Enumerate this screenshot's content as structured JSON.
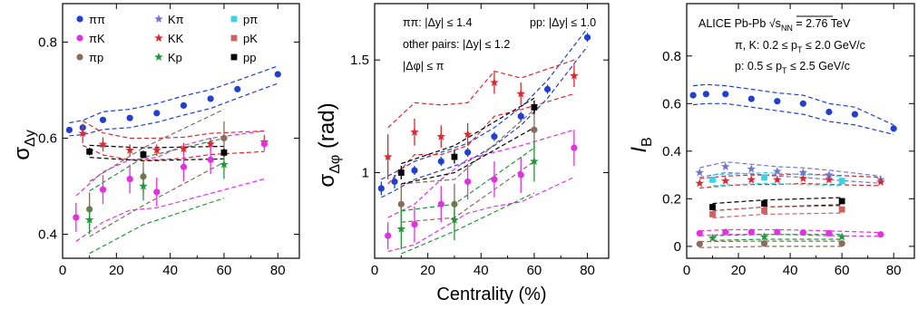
{
  "xlabel": "Centrality (%)",
  "chart_data": [
    {
      "type": "scatter",
      "panel": "sigma-dy",
      "ylabel": "σ",
      "ylabel_sub": "Δy",
      "xlim": [
        0,
        88
      ],
      "ylim": [
        0.35,
        0.88
      ],
      "xticks": [
        0,
        20,
        40,
        60,
        80
      ],
      "xtick_labels": [
        "0",
        "20",
        "40",
        "60",
        "80"
      ],
      "yticks": [
        0.4,
        0.6,
        0.8
      ],
      "ytick_labels": [
        "0.4",
        "0.6",
        "0.8"
      ],
      "legend": [
        {
          "label": "ππ",
          "color": "#1f3fd6",
          "marker": "circle"
        },
        {
          "label": "Kπ",
          "color": "#6f74d8",
          "marker": "star"
        },
        {
          "label": "pπ",
          "color": "#33d6e6",
          "marker": "square"
        },
        {
          "label": "πK",
          "color": "#e62ee6",
          "marker": "circle"
        },
        {
          "label": "KK",
          "color": "#e3262e",
          "marker": "star"
        },
        {
          "label": "pK",
          "color": "#d45f5f",
          "marker": "square"
        },
        {
          "label": "πp",
          "color": "#8a6b5d",
          "marker": "circle"
        },
        {
          "label": "Kp",
          "color": "#1f9a36",
          "marker": "star"
        },
        {
          "label": "pp",
          "color": "#000000",
          "marker": "square"
        }
      ],
      "series": [
        {
          "name": "ππ",
          "color": "#1f3fd6",
          "marker": "circle",
          "x": [
            2.5,
            7.5,
            15,
            25,
            35,
            45,
            55,
            65,
            80
          ],
          "y": [
            0.617,
            0.622,
            0.638,
            0.642,
            0.652,
            0.668,
            0.682,
            0.702,
            0.733
          ],
          "err": [
            0.005,
            0.005,
            0.005,
            0.005,
            0.005,
            0.005,
            0.005,
            0.005,
            0.005
          ],
          "band_lo": [
            0.605,
            0.607,
            0.618,
            0.622,
            0.633,
            0.648,
            0.662,
            0.683,
            0.714
          ],
          "band_hi": [
            0.632,
            0.637,
            0.655,
            0.66,
            0.672,
            0.688,
            0.701,
            0.72,
            0.75
          ]
        },
        {
          "name": "KK",
          "color": "#e3262e",
          "marker": "star",
          "x": [
            7.5,
            15,
            25,
            35,
            45,
            55,
            75
          ],
          "y": [
            0.61,
            0.587,
            0.575,
            0.575,
            0.578,
            0.588,
            0.592
          ],
          "err": [
            0.02,
            0.015,
            0.012,
            0.012,
            0.012,
            0.012,
            0.015
          ],
          "band_lo": [
            0.585,
            0.565,
            0.555,
            0.555,
            0.558,
            0.566,
            0.572
          ],
          "band_hi": [
            0.636,
            0.611,
            0.6,
            0.6,
            0.602,
            0.61,
            0.615
          ]
        },
        {
          "name": "πK",
          "color": "#e62ee6",
          "marker": "circle",
          "x": [
            5,
            15,
            25,
            35,
            45,
            55,
            75
          ],
          "y": [
            0.435,
            0.493,
            0.515,
            0.488,
            0.54,
            0.555,
            0.588
          ],
          "err": [
            0.03,
            0.03,
            0.03,
            0.03,
            0.03,
            0.03,
            0.015
          ],
          "band_lo": [
            0.385,
            0.425,
            0.45,
            0.455,
            0.47,
            0.485,
            0.515
          ],
          "band_hi": [
            0.48,
            0.53,
            0.555,
            0.56,
            0.585,
            0.6,
            0.615
          ]
        },
        {
          "name": "πp",
          "color": "#8a6b5d",
          "marker": "circle",
          "x": [
            10,
            30,
            60
          ],
          "y": [
            0.452,
            0.52,
            0.6
          ],
          "err": [
            0.035,
            0.035,
            0.035
          ],
          "band_lo": [
            0.395,
            0.46,
            0.55
          ],
          "band_hi": [
            0.51,
            0.58,
            0.66
          ]
        },
        {
          "name": "Kp",
          "color": "#1f9a36",
          "marker": "star",
          "x": [
            10,
            30,
            60
          ],
          "y": [
            0.43,
            0.5,
            0.545
          ],
          "err": [
            0.03,
            0.03,
            0.03
          ],
          "band_lo": [
            0.36,
            0.42,
            0.475
          ],
          "band_hi": [
            0.49,
            0.56,
            0.6
          ]
        },
        {
          "name": "pp",
          "color": "#000000",
          "marker": "square",
          "x": [
            10,
            30,
            60
          ],
          "y": [
            0.572,
            0.566,
            0.57
          ],
          "err": [
            0.008,
            0.008,
            0.008
          ],
          "band_lo": [
            0.56,
            0.553,
            0.557
          ],
          "band_hi": [
            0.585,
            0.58,
            0.583
          ]
        }
      ]
    },
    {
      "type": "scatter",
      "panel": "sigma-dphi",
      "ylabel": "σ",
      "ylabel_sub": "Δφ",
      "ylabel_unit": " (rad)",
      "xlim": [
        0,
        88
      ],
      "ylim": [
        0.62,
        1.75
      ],
      "xticks": [
        0,
        20,
        40,
        60,
        80
      ],
      "xtick_labels": [
        "0",
        "20",
        "40",
        "60",
        "80"
      ],
      "yticks": [
        1.0,
        1.5
      ],
      "ytick_labels": [
        "1",
        "1.5"
      ],
      "annotations": [
        "ππ: |Δy| ≤ 1.4",
        "pp: |Δy| ≤ 1.0",
        "other pairs: |Δy| ≤ 1.2",
        "|Δφ| ≤ π"
      ],
      "series": [
        {
          "name": "ππ",
          "color": "#1f3fd6",
          "marker": "circle",
          "x": [
            2.5,
            7.5,
            15,
            25,
            35,
            45,
            55,
            65,
            80
          ],
          "y": [
            0.93,
            0.96,
            1.01,
            1.05,
            1.09,
            1.16,
            1.25,
            1.37,
            1.6
          ],
          "err": [
            0.03,
            0.03,
            0.02,
            0.02,
            0.02,
            0.02,
            0.02,
            0.02,
            0.02
          ],
          "band_lo": [
            0.89,
            0.92,
            0.97,
            1.01,
            1.05,
            1.12,
            1.21,
            1.33,
            1.56
          ],
          "band_hi": [
            0.97,
            1.0,
            1.05,
            1.09,
            1.13,
            1.2,
            1.29,
            1.41,
            1.64
          ]
        },
        {
          "name": "KK",
          "color": "#e3262e",
          "marker": "star",
          "x": [
            5,
            15,
            25,
            35,
            45,
            55,
            75
          ],
          "y": [
            1.07,
            1.18,
            1.16,
            1.17,
            1.4,
            1.35,
            1.43
          ],
          "err": [
            0.1,
            0.06,
            0.05,
            0.05,
            0.05,
            0.05,
            0.05
          ],
          "band_lo": [
            0.95,
            1.08,
            1.08,
            1.12,
            1.25,
            1.28,
            1.35
          ],
          "band_hi": [
            1.2,
            1.31,
            1.3,
            1.31,
            1.45,
            1.42,
            1.5
          ]
        },
        {
          "name": "πK",
          "color": "#e62ee6",
          "marker": "circle",
          "x": [
            5,
            15,
            25,
            35,
            45,
            55,
            75
          ],
          "y": [
            0.72,
            0.77,
            0.86,
            0.96,
            0.97,
            0.99,
            1.11
          ],
          "err": [
            0.06,
            0.08,
            0.08,
            0.08,
            0.08,
            0.08,
            0.08
          ],
          "band_lo": [
            0.65,
            0.68,
            0.75,
            0.82,
            0.85,
            0.87,
            0.98
          ],
          "band_hi": [
            0.8,
            0.86,
            0.97,
            1.06,
            1.09,
            1.12,
            1.19
          ]
        },
        {
          "name": "πp",
          "color": "#8a6b5d",
          "marker": "circle",
          "x": [
            10,
            30,
            60
          ],
          "y": [
            0.86,
            0.86,
            1.19
          ],
          "err": [
            0.09,
            0.09,
            0.09
          ],
          "band_lo": [
            0.78,
            0.8,
            1.05
          ],
          "band_hi": [
            0.95,
            0.97,
            1.28
          ]
        },
        {
          "name": "Kp",
          "color": "#1f9a36",
          "marker": "star",
          "x": [
            10,
            30,
            60
          ],
          "y": [
            0.75,
            0.79,
            1.05
          ],
          "err": [
            0.09,
            0.09,
            0.09
          ],
          "band_lo": [
            0.64,
            0.74,
            0.91
          ],
          "band_hi": [
            0.83,
            0.86,
            1.11
          ]
        },
        {
          "name": "pp",
          "color": "#000000",
          "marker": "square",
          "x": [
            10,
            30,
            60
          ],
          "y": [
            1.0,
            1.07,
            1.29
          ],
          "err": [
            0.03,
            0.03,
            0.03
          ],
          "band_lo": [
            0.95,
            1.0,
            1.2
          ],
          "band_hi": [
            1.04,
            1.12,
            1.33
          ]
        }
      ]
    },
    {
      "type": "scatter",
      "panel": "ib",
      "ylabel": "I",
      "ylabel_sub": "B",
      "xlim": [
        0,
        88
      ],
      "ylim": [
        -0.05,
        1.02
      ],
      "xticks": [
        0,
        20,
        40,
        60,
        80
      ],
      "xtick_labels": [
        "0",
        "20",
        "40",
        "60",
        "80"
      ],
      "yticks": [
        0,
        0.2,
        0.4,
        0.6,
        0.8
      ],
      "ytick_labels": [
        "0",
        "0.2",
        "0.4",
        "0.6",
        "0.8"
      ],
      "annotations": [
        "ALICE Pb-Pb √s",
        "NN",
        " = 2.76 TeV",
        "π, K: 0.2 ≤ p",
        "T",
        " ≤ 2.0 GeV/c",
        "p: 0.5 ≤ p",
        "T",
        " ≤ 2.5 GeV/c"
      ],
      "series": [
        {
          "name": "ππ",
          "color": "#1f3fd6",
          "marker": "circle",
          "x": [
            2.5,
            7.5,
            15,
            25,
            35,
            45,
            55,
            65,
            80
          ],
          "y": [
            0.635,
            0.64,
            0.64,
            0.62,
            0.61,
            0.6,
            0.565,
            0.555,
            0.495
          ],
          "err": [
            0.004,
            0.004,
            0.004,
            0.004,
            0.004,
            0.004,
            0.004,
            0.004,
            0.004
          ],
          "band_lo": [
            0.595,
            0.6,
            0.6,
            0.585,
            0.57,
            0.555,
            0.525,
            0.51,
            0.47
          ],
          "band_hi": [
            0.675,
            0.68,
            0.675,
            0.66,
            0.645,
            0.635,
            0.6,
            0.585,
            0.51
          ]
        },
        {
          "name": "Kπ",
          "color": "#6f74d8",
          "marker": "star",
          "x": [
            5,
            15,
            25,
            35,
            45,
            55,
            75
          ],
          "y": [
            0.31,
            0.335,
            0.325,
            0.315,
            0.31,
            0.3,
            0.28
          ],
          "err": [
            0.005,
            0.005,
            0.005,
            0.005,
            0.005,
            0.005,
            0.005
          ],
          "band_lo": [
            0.29,
            0.31,
            0.305,
            0.295,
            0.29,
            0.28,
            0.265
          ],
          "band_hi": [
            0.33,
            0.355,
            0.345,
            0.335,
            0.33,
            0.32,
            0.295
          ]
        },
        {
          "name": "KK",
          "color": "#e3262e",
          "marker": "star",
          "x": [
            5,
            15,
            25,
            35,
            45,
            55,
            75
          ],
          "y": [
            0.265,
            0.275,
            0.28,
            0.28,
            0.285,
            0.28,
            0.27
          ],
          "err": [
            0.006,
            0.006,
            0.006,
            0.006,
            0.006,
            0.006,
            0.006
          ],
          "band_lo": [
            0.245,
            0.255,
            0.26,
            0.26,
            0.265,
            0.26,
            0.255
          ],
          "band_hi": [
            0.285,
            0.295,
            0.3,
            0.3,
            0.305,
            0.3,
            0.29
          ]
        },
        {
          "name": "pπ",
          "color": "#33d6e6",
          "marker": "square",
          "x": [
            10,
            30,
            60
          ],
          "y": [
            0.28,
            0.29,
            0.275
          ],
          "err": [
            0.005,
            0.005,
            0.005
          ],
          "band_lo": [
            0.255,
            0.265,
            0.255
          ],
          "band_hi": [
            0.3,
            0.31,
            0.295
          ]
        },
        {
          "name": "pp",
          "color": "#000000",
          "marker": "square",
          "x": [
            10,
            30,
            60
          ],
          "y": [
            0.165,
            0.18,
            0.19
          ],
          "err": [
            0.005,
            0.005,
            0.005
          ],
          "band_lo": [
            0.15,
            0.165,
            0.175
          ],
          "band_hi": [
            0.18,
            0.195,
            0.205
          ]
        },
        {
          "name": "pK",
          "color": "#d45f5f",
          "marker": "square",
          "x": [
            10,
            30,
            60
          ],
          "y": [
            0.135,
            0.15,
            0.155
          ],
          "err": [
            0.005,
            0.005,
            0.005
          ],
          "band_lo": [
            0.12,
            0.135,
            0.14
          ],
          "band_hi": [
            0.15,
            0.165,
            0.17
          ]
        },
        {
          "name": "πK",
          "color": "#e62ee6",
          "marker": "circle",
          "x": [
            5,
            15,
            25,
            35,
            45,
            55,
            75
          ],
          "y": [
            0.055,
            0.06,
            0.06,
            0.06,
            0.058,
            0.055,
            0.05
          ],
          "err": [
            0.003,
            0.003,
            0.003,
            0.003,
            0.003,
            0.003,
            0.003
          ],
          "band_lo": [
            0.045,
            0.05,
            0.05,
            0.05,
            0.048,
            0.045,
            0.042
          ],
          "band_hi": [
            0.065,
            0.07,
            0.07,
            0.07,
            0.068,
            0.065,
            0.058
          ]
        },
        {
          "name": "Kp",
          "color": "#1f9a36",
          "marker": "star",
          "x": [
            10,
            30,
            60
          ],
          "y": [
            0.035,
            0.04,
            0.04
          ],
          "err": [
            0.003,
            0.003,
            0.003
          ],
          "band_lo": [
            0.025,
            0.03,
            0.03
          ],
          "band_hi": [
            0.045,
            0.05,
            0.05
          ]
        },
        {
          "name": "πp",
          "color": "#8a6b5d",
          "marker": "circle",
          "x": [
            5,
            30,
            60
          ],
          "y": [
            0.01,
            0.012,
            0.012
          ],
          "err": [
            0.003,
            0.003,
            0.003
          ],
          "band_lo": [
            -0.005,
            0.0,
            0.0
          ],
          "band_hi": [
            0.02,
            0.022,
            0.022
          ]
        }
      ]
    }
  ]
}
